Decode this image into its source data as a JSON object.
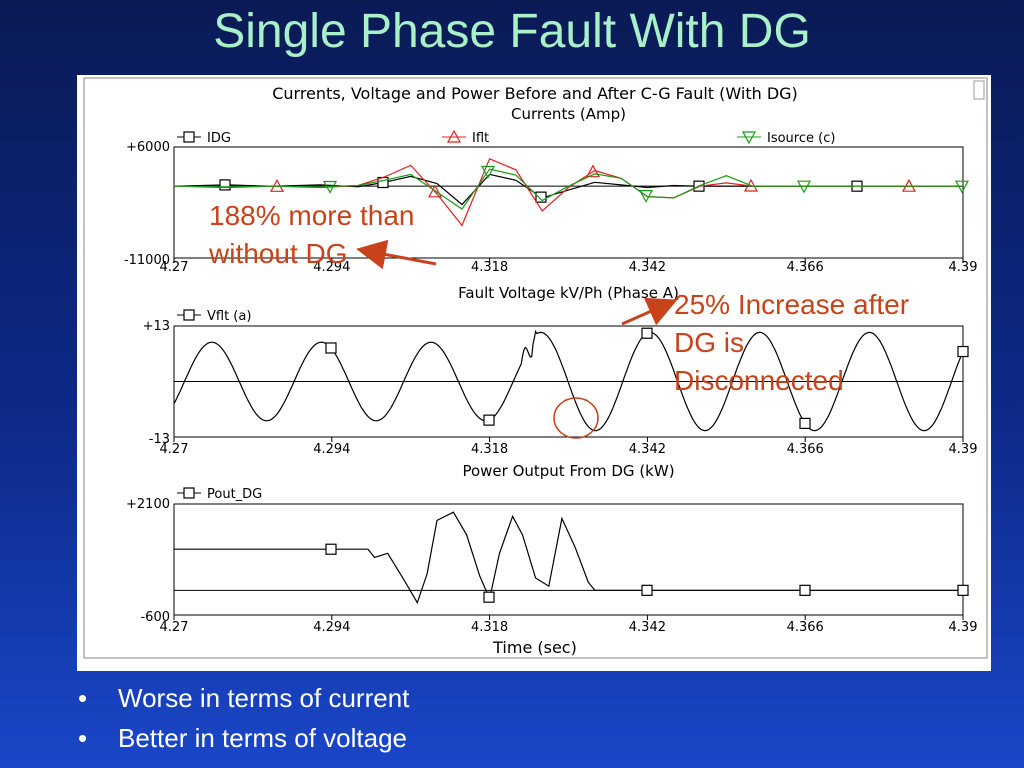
{
  "slide": {
    "title": "Single Phase Fault With DG"
  },
  "figure": {
    "main_title": "Currents, Voltage and Power Before and After C-G Fault (With DG)",
    "x_axis_label": "Time (sec)"
  },
  "annotations": {
    "a1": [
      "188% more than",
      "without DG"
    ],
    "a2": [
      "25% Increase after",
      "DG is",
      "Disconnected"
    ]
  },
  "bullets": [
    "Worse in terms of current",
    "Better in terms of voltage"
  ],
  "colors": {
    "annotation": "#c8421a",
    "ifault": "#e02020",
    "isource": "#189a18",
    "trace": "#000000",
    "title": "#a8f0c8"
  },
  "chart_data": [
    {
      "type": "line",
      "title": "Currents (Amp)",
      "x_ticks": [
        "4.27",
        "4.294",
        "4.318",
        "4.342",
        "4.366",
        "4.39"
      ],
      "xlim": [
        4.27,
        4.39
      ],
      "y_ticks": [
        "+6000",
        "-11000"
      ],
      "ylim": [
        -11000,
        6000
      ],
      "series": [
        {
          "name": "IDG",
          "marker": "square",
          "color": "#000000",
          "x": [
            4.27,
            4.278,
            4.285,
            4.2923,
            4.298,
            4.302,
            4.306,
            4.31,
            4.3138,
            4.318,
            4.322,
            4.326,
            4.33,
            4.334,
            4.338,
            4.342,
            4.346,
            4.35,
            4.354,
            4.358,
            4.39
          ],
          "y": [
            0,
            200,
            0,
            200,
            -100,
            600,
            1500,
            400,
            -2800,
            1800,
            900,
            -1800,
            -600,
            600,
            200,
            -200,
            100,
            0,
            0,
            0,
            0
          ]
        },
        {
          "name": "Iflt",
          "marker": "triangle",
          "color": "#e02020",
          "x": [
            4.27,
            4.278,
            4.285,
            4.2923,
            4.298,
            4.302,
            4.306,
            4.31,
            4.3138,
            4.318,
            4.322,
            4.326,
            4.33,
            4.334,
            4.338,
            4.342,
            4.346,
            4.35,
            4.354,
            4.358,
            4.39
          ],
          "y": [
            0,
            -200,
            0,
            -200,
            100,
            1400,
            3200,
            -1200,
            -6000,
            4200,
            2500,
            -3800,
            -200,
            2400,
            1200,
            -1600,
            -1800,
            0,
            500,
            0,
            0
          ]
        },
        {
          "name": "Isource (c)",
          "marker": "triangle-down",
          "color": "#189a18",
          "x": [
            4.27,
            4.278,
            4.285,
            4.2923,
            4.298,
            4.302,
            4.306,
            4.31,
            4.3138,
            4.318,
            4.322,
            4.326,
            4.33,
            4.334,
            4.338,
            4.342,
            4.346,
            4.35,
            4.354,
            4.358,
            4.39
          ],
          "y": [
            0,
            -100,
            0,
            -100,
            100,
            900,
            1800,
            -900,
            -3500,
            2600,
            1700,
            -2200,
            0,
            1900,
            1200,
            -1600,
            -1800,
            100,
            1600,
            0,
            0
          ]
        }
      ]
    },
    {
      "type": "line",
      "title": "Fault Voltage kV/Ph (Phase A)",
      "x_ticks": [
        "4.27",
        "4.294",
        "4.318",
        "4.342",
        "4.366",
        "4.39"
      ],
      "xlim": [
        4.27,
        4.39
      ],
      "y_ticks": [
        "+13",
        "-13"
      ],
      "ylim": [
        -13,
        13
      ],
      "series": [
        {
          "name": "Vflt (a)",
          "marker": "square",
          "color": "#000000",
          "description": "sine 60 Hz, peak ~9.2 kV before fault, distorted ~4.325 s, peak ~11.5 kV after"
        }
      ]
    },
    {
      "type": "line",
      "title": "Power Output From DG (kW)",
      "x_ticks": [
        "4.27",
        "4.294",
        "4.318",
        "4.342",
        "4.366",
        "4.39"
      ],
      "xlim": [
        4.27,
        4.39
      ],
      "y_ticks": [
        "+2100",
        "-600"
      ],
      "ylim": [
        -600,
        2100
      ],
      "series": [
        {
          "name": "Pout_DG",
          "marker": "square",
          "color": "#000000",
          "x": [
            4.27,
            4.2995,
            4.3005,
            4.3025,
            4.305,
            4.307,
            4.3085,
            4.31,
            4.3125,
            4.3145,
            4.3165,
            4.318,
            4.3195,
            4.3215,
            4.323,
            4.325,
            4.327,
            4.329,
            4.331,
            4.333,
            4.334,
            4.342,
            4.39
          ],
          "y": [
            1000,
            1000,
            800,
            900,
            250,
            -300,
            400,
            1700,
            1900,
            1350,
            350,
            -200,
            900,
            1800,
            1350,
            300,
            100,
            1750,
            1050,
            200,
            0,
            0,
            0
          ]
        }
      ]
    }
  ]
}
